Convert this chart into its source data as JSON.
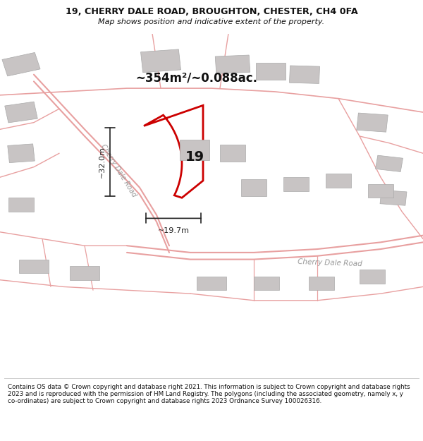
{
  "title_line1": "19, CHERRY DALE ROAD, BROUGHTON, CHESTER, CH4 0FA",
  "title_line2": "Map shows position and indicative extent of the property.",
  "footer_text": "Contains OS data © Crown copyright and database right 2021. This information is subject to Crown copyright and database rights 2023 and is reproduced with the permission of HM Land Registry. The polygons (including the associated geometry, namely x, y co-ordinates) are subject to Crown copyright and database rights 2023 Ordnance Survey 100026316.",
  "area_label": "~354m²/~0.088ac.",
  "property_number": "19",
  "dim_height": "~32.0m",
  "dim_width": "~19.7m",
  "road_label_diagonal": "Cherry Dale Road",
  "road_label_bottom": "Cherry Dale Road",
  "map_bg": "#f7f3f3",
  "road_color": "#e8a0a0",
  "building_color": "#c8c4c4",
  "building_edge": "#aaaaaa",
  "property_fill": "#ffffff",
  "property_edge": "#cc0000",
  "dim_color": "#222222",
  "title_color": "#111111",
  "footer_color": "#111111"
}
